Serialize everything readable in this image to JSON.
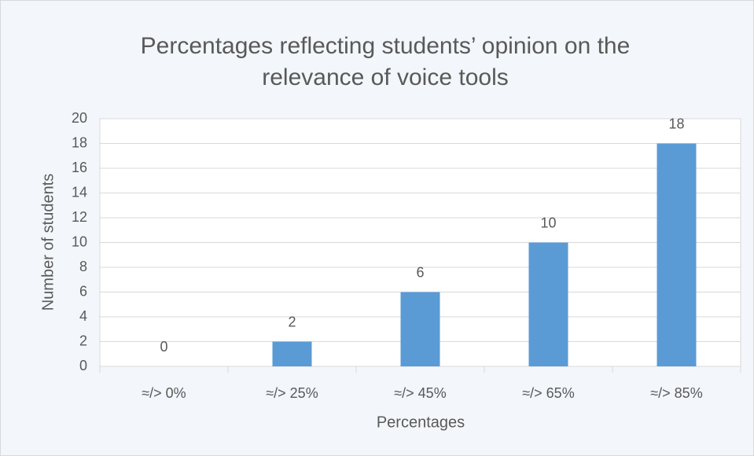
{
  "chart_data": {
    "type": "bar",
    "title": [
      "Percentages reflecting students’ opinion on the",
      "relevance of voice tools"
    ],
    "xlabel": "Percentages",
    "ylabel": "Number of students",
    "categories": [
      "≈/> 0%",
      "≈/> 25%",
      "≈/> 45%",
      "≈/> 65%",
      "≈/> 85%"
    ],
    "values": [
      0,
      2,
      6,
      10,
      18
    ],
    "color": "#5b9bd5",
    "ylim": [
      0,
      20
    ],
    "yticks": [
      0,
      2,
      4,
      6,
      8,
      10,
      12,
      14,
      16,
      18,
      20
    ],
    "grid": true
  }
}
